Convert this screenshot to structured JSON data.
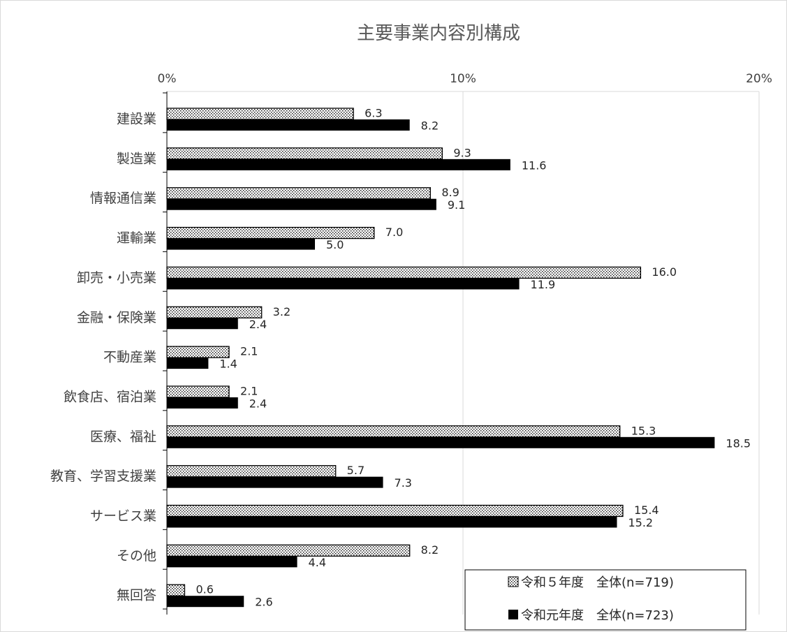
{
  "chart_data": {
    "type": "bar",
    "orientation": "horizontal",
    "title": "主要事業内容別構成",
    "xlabel": "",
    "ylabel": "",
    "xlim": [
      0,
      20
    ],
    "x_ticks": [
      0,
      10,
      20
    ],
    "x_tick_labels": [
      "0%",
      "10%",
      "20%"
    ],
    "x_axis_position": "top",
    "grid": true,
    "legend_position": "bottom-right",
    "categories": [
      "建設業",
      "製造業",
      "情報通信業",
      "運輸業",
      "卸売・小売業",
      "金融・保険業",
      "不動産業",
      "飲食店、宿泊業",
      "医療、福祉",
      "教育、学習支援業",
      "サービス業",
      "その他",
      "無回答"
    ],
    "series": [
      {
        "name": "令和５年度　全体(n=719)",
        "pattern": "dotted",
        "color": "#000000",
        "values": [
          6.3,
          9.3,
          8.9,
          7.0,
          16.0,
          3.2,
          2.1,
          2.1,
          15.3,
          5.7,
          15.4,
          8.2,
          0.6
        ],
        "labels": [
          "6.3",
          "9.3",
          "8.9",
          "7.0",
          "16.0",
          "3.2",
          "2.1",
          "2.1",
          "15.3",
          "5.7",
          "15.4",
          "8.2",
          "0.6"
        ]
      },
      {
        "name": "令和元年度　全体(n=723)",
        "pattern": "solid",
        "color": "#000000",
        "values": [
          8.2,
          11.6,
          9.1,
          5.0,
          11.9,
          2.4,
          1.4,
          2.4,
          18.5,
          7.3,
          15.2,
          4.4,
          2.6
        ],
        "labels": [
          "8.2",
          "11.6",
          "9.1",
          "5.0",
          "11.9",
          "2.4",
          "1.4",
          "2.4",
          "18.5",
          "7.3",
          "15.2",
          "4.4",
          "2.6"
        ]
      }
    ]
  }
}
